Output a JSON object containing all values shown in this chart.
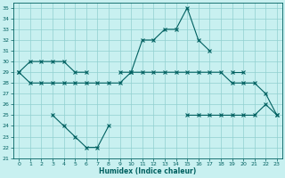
{
  "x": [
    0,
    1,
    2,
    3,
    4,
    5,
    6,
    7,
    8,
    9,
    10,
    11,
    12,
    13,
    14,
    15,
    16,
    17,
    18,
    19,
    20,
    21,
    22,
    23
  ],
  "line1": [
    29,
    30,
    30,
    30,
    30,
    29,
    29,
    null,
    null,
    29,
    29,
    32,
    32,
    33,
    33,
    35,
    32,
    31,
    null,
    29,
    29,
    null,
    null,
    null
  ],
  "line2": [
    29,
    28,
    28,
    28,
    28,
    28,
    28,
    28,
    28,
    28,
    29,
    29,
    29,
    29,
    29,
    29,
    29,
    29,
    29,
    28,
    28,
    28,
    27,
    25
  ],
  "line3": [
    null,
    null,
    null,
    25,
    24,
    23,
    22,
    22,
    24,
    null,
    null,
    null,
    null,
    null,
    null,
    25,
    25,
    25,
    25,
    25,
    25,
    25,
    26,
    25
  ],
  "line_color": "#006060",
  "bg_color": "#c8f0f0",
  "grid_color": "#90d0d0",
  "xlabel": "Humidex (Indice chaleur)",
  "ylim": [
    21,
    35.5
  ],
  "yticks": [
    21,
    22,
    23,
    24,
    25,
    26,
    27,
    28,
    29,
    30,
    31,
    32,
    33,
    34,
    35
  ],
  "xlim": [
    -0.5,
    23.5
  ],
  "xticks": [
    0,
    1,
    2,
    3,
    4,
    5,
    6,
    7,
    8,
    9,
    10,
    11,
    12,
    13,
    14,
    15,
    16,
    17,
    18,
    19,
    20,
    21,
    22,
    23
  ]
}
